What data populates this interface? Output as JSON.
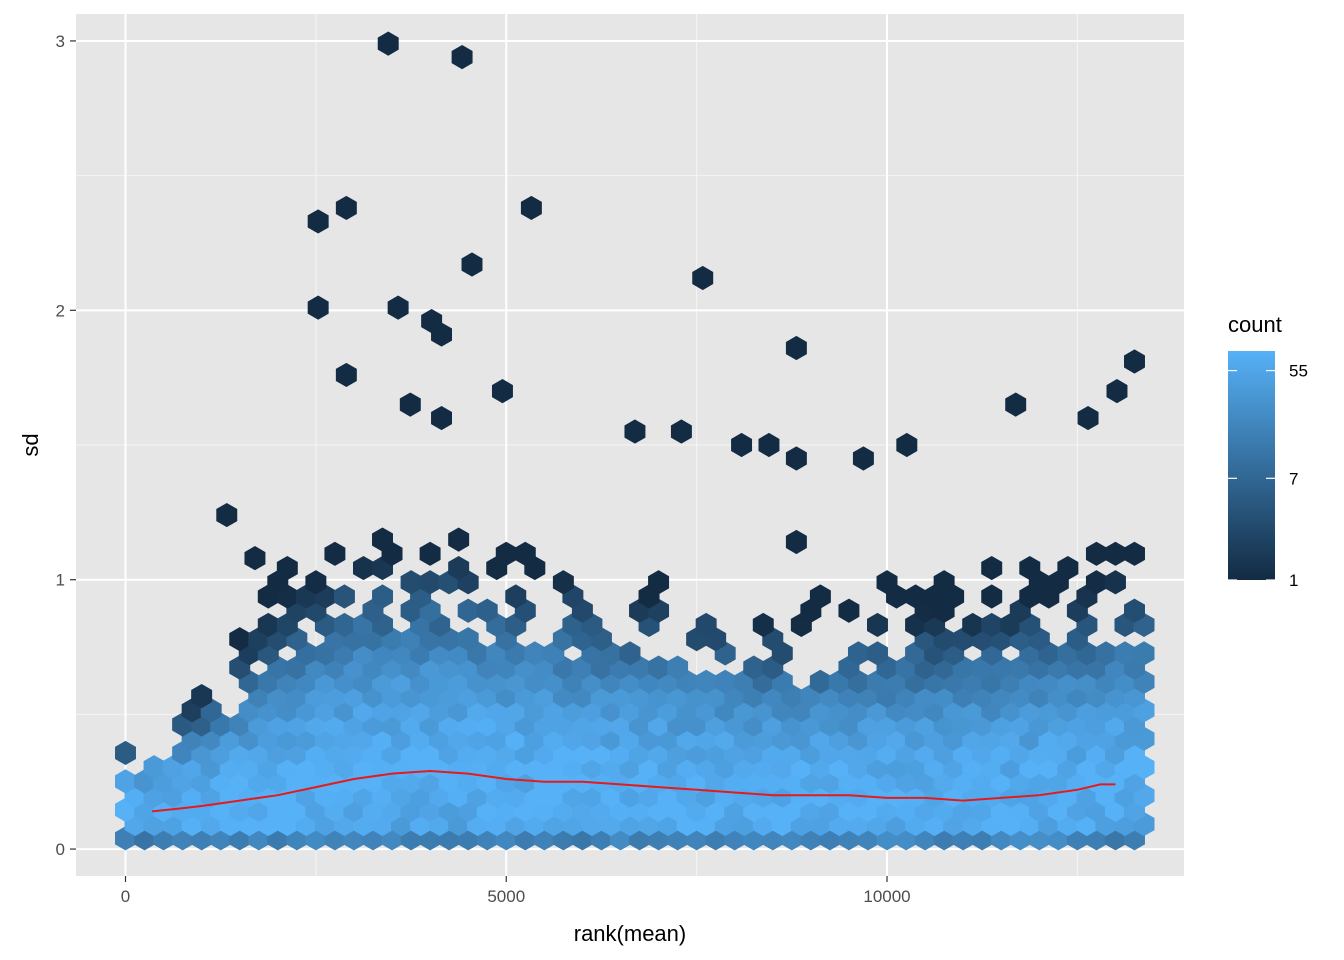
{
  "chart_data": {
    "type": "hexbin",
    "xlabel": "rank(mean)",
    "ylabel": "sd",
    "xlim": [
      -650,
      13900
    ],
    "ylim": [
      -0.1,
      3.1
    ],
    "x_ticks": [
      0,
      5000,
      10000
    ],
    "x_tick_labels": [
      "0",
      "5000",
      "10000"
    ],
    "y_ticks": [
      0,
      1,
      2,
      3
    ],
    "y_tick_labels": [
      "0",
      "1",
      "2",
      "3"
    ],
    "grid": true,
    "panel_background": "#e6e6e6",
    "legend": {
      "title": "count",
      "position": "right",
      "scale": "log",
      "range": [
        1,
        80
      ],
      "breaks": [
        1,
        7,
        55
      ],
      "break_labels": [
        "1",
        "7",
        "55"
      ],
      "color_low": "#132b43",
      "color_high": "#56b1f7"
    },
    "density_profile": {
      "x": [
        0,
        1000,
        2000,
        3000,
        4000,
        5000,
        6000,
        7000,
        8000,
        9000,
        10000,
        11000,
        12000,
        13000
      ],
      "center_sd": [
        0.15,
        0.17,
        0.21,
        0.27,
        0.29,
        0.27,
        0.25,
        0.23,
        0.21,
        0.2,
        0.19,
        0.19,
        0.2,
        0.24
      ],
      "upper_sd": [
        0.38,
        0.55,
        0.95,
        1.1,
        1.1,
        1.05,
        1.0,
        0.95,
        0.9,
        0.85,
        0.95,
        0.95,
        1.0,
        1.05
      ]
    },
    "outliers": [
      {
        "x": 3450,
        "sd": 2.99
      },
      {
        "x": 4420,
        "sd": 2.94
      },
      {
        "x": 2900,
        "sd": 2.38
      },
      {
        "x": 5330,
        "sd": 2.38
      },
      {
        "x": 2530,
        "sd": 2.33
      },
      {
        "x": 4550,
        "sd": 2.17
      },
      {
        "x": 7580,
        "sd": 2.12
      },
      {
        "x": 2530,
        "sd": 2.01
      },
      {
        "x": 3580,
        "sd": 2.01
      },
      {
        "x": 4020,
        "sd": 1.96
      },
      {
        "x": 4150,
        "sd": 1.91
      },
      {
        "x": 8810,
        "sd": 1.86
      },
      {
        "x": 13250,
        "sd": 1.81
      },
      {
        "x": 2900,
        "sd": 1.76
      },
      {
        "x": 13020,
        "sd": 1.7
      },
      {
        "x": 4950,
        "sd": 1.7
      },
      {
        "x": 11690,
        "sd": 1.65
      },
      {
        "x": 3740,
        "sd": 1.65
      },
      {
        "x": 12640,
        "sd": 1.6
      },
      {
        "x": 4150,
        "sd": 1.6
      },
      {
        "x": 1330,
        "sd": 1.24
      },
      {
        "x": 10260,
        "sd": 1.5
      },
      {
        "x": 8090,
        "sd": 1.5
      },
      {
        "x": 8450,
        "sd": 1.5
      },
      {
        "x": 9690,
        "sd": 1.45
      },
      {
        "x": 8810,
        "sd": 1.45
      },
      {
        "x": 7300,
        "sd": 1.55
      },
      {
        "x": 6690,
        "sd": 1.55
      },
      {
        "x": 1700,
        "sd": 1.08
      },
      {
        "x": 8810,
        "sd": 1.14
      }
    ],
    "trend_line": {
      "x": [
        350,
        700,
        1000,
        1500,
        2000,
        2500,
        3000,
        3500,
        4000,
        4500,
        5000,
        5500,
        6000,
        6500,
        7000,
        7500,
        8000,
        8500,
        9000,
        9500,
        10000,
        10500,
        11000,
        11500,
        12000,
        12500,
        12800,
        13000
      ],
      "sd": [
        0.14,
        0.15,
        0.16,
        0.18,
        0.2,
        0.23,
        0.26,
        0.28,
        0.29,
        0.28,
        0.26,
        0.25,
        0.25,
        0.24,
        0.23,
        0.22,
        0.21,
        0.2,
        0.2,
        0.2,
        0.19,
        0.19,
        0.18,
        0.19,
        0.2,
        0.22,
        0.24,
        0.24
      ],
      "color": "#e41a1c"
    }
  }
}
